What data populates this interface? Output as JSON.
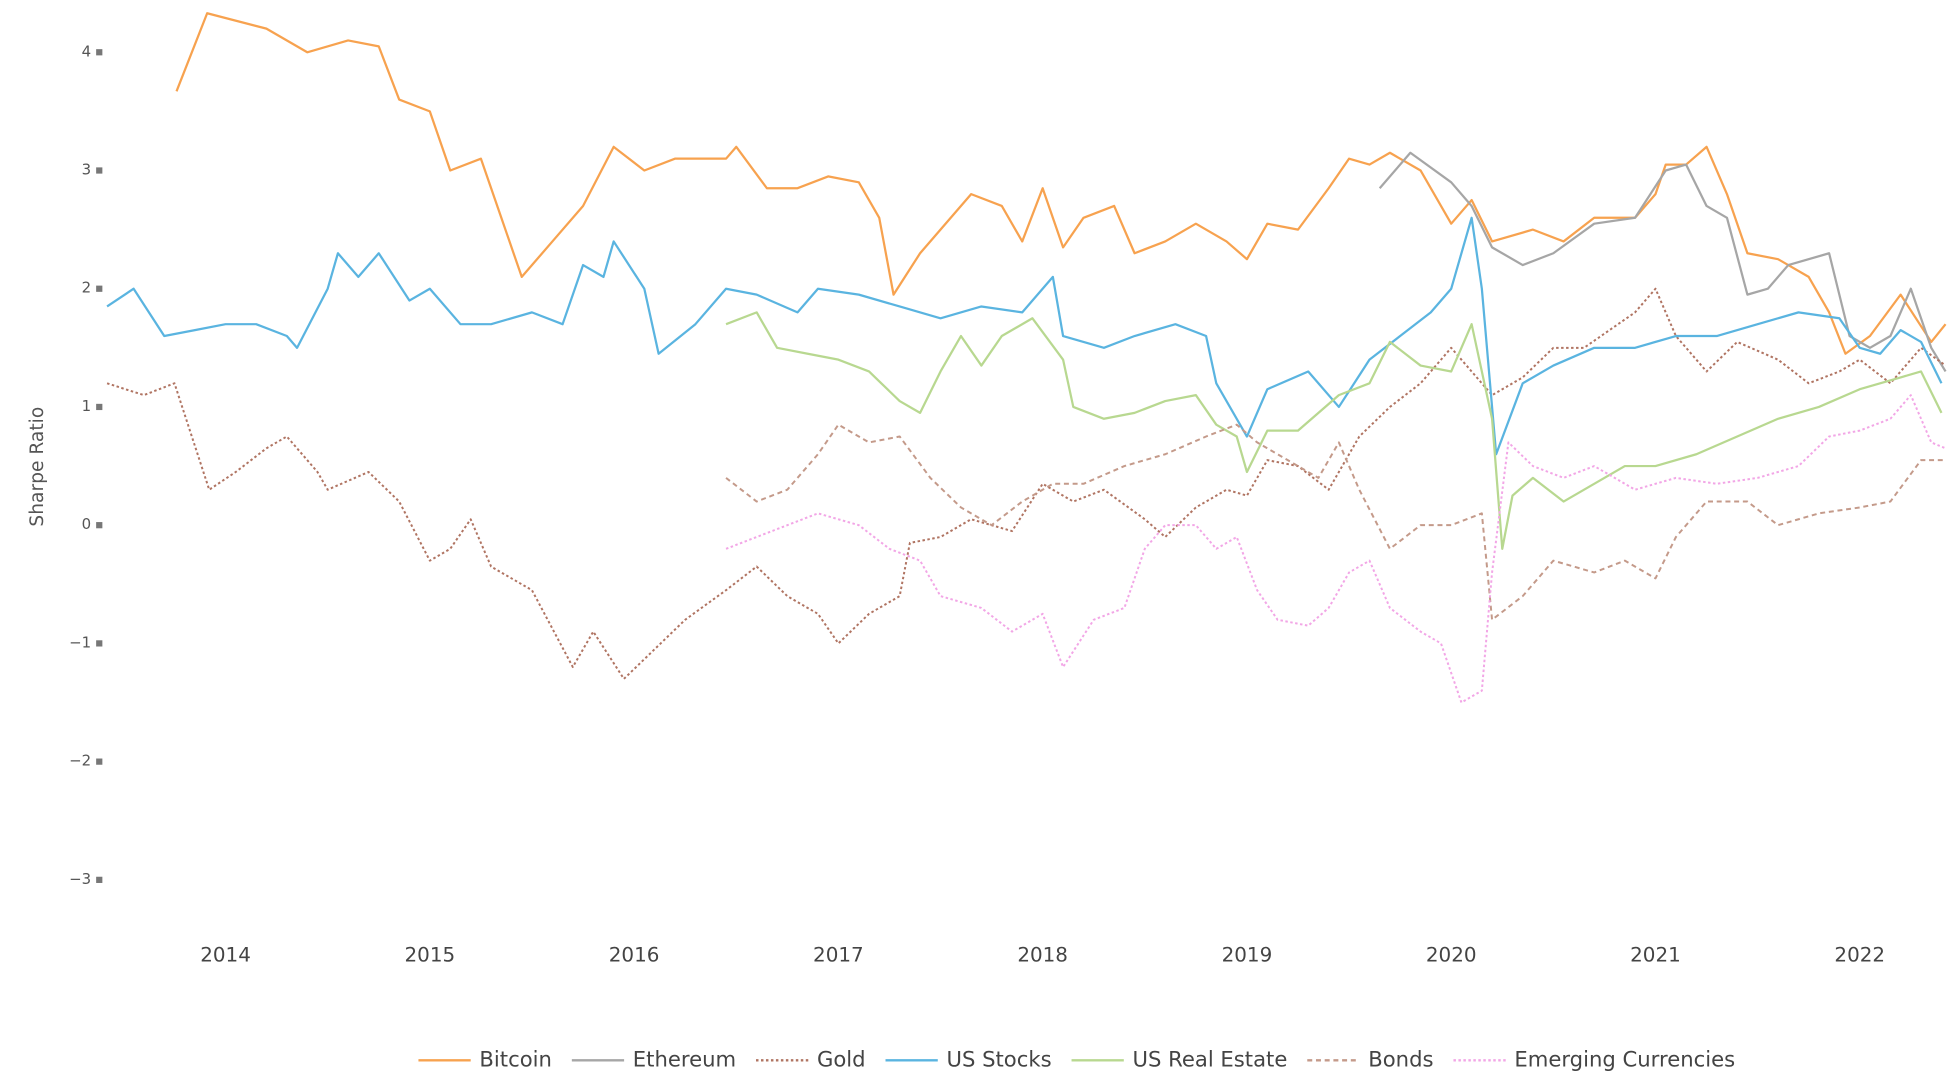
{
  "chart_data": {
    "type": "line",
    "y_label": "Sharpe Ratio",
    "xlim": [
      2013.4,
      2022.45
    ],
    "xticks": [
      2014,
      2015,
      2016,
      2017,
      2018,
      2019,
      2020,
      2021,
      2022
    ],
    "ylim": [
      -3.2,
      4.35
    ],
    "yticks": [
      4,
      3,
      2,
      1,
      0,
      {
        "value": -1,
        "label": "−1"
      },
      {
        "value": -2,
        "label": "−2"
      },
      {
        "value": -3,
        "label": "−3"
      }
    ],
    "grid": false,
    "legend": "bottom",
    "series": [
      {
        "name": "Bitcoin",
        "color": "#f7a24f",
        "dash": "solid",
        "x": [
          2013.76,
          2013.91,
          2014.2,
          2014.4,
          2014.6,
          2014.75,
          2014.85,
          2015.0,
          2015.1,
          2015.25,
          2015.35,
          2015.45,
          2015.6,
          2015.75,
          2015.9,
          2016.05,
          2016.2,
          2016.45,
          2016.5,
          2016.65,
          2016.8,
          2016.95,
          2017.1,
          2017.2,
          2017.27,
          2017.4,
          2017.55,
          2017.65,
          2017.8,
          2017.9,
          2018.0,
          2018.1,
          2018.2,
          2018.35,
          2018.45,
          2018.6,
          2018.75,
          2018.9,
          2019.0,
          2019.1,
          2019.25,
          2019.4,
          2019.5,
          2019.6,
          2019.7,
          2019.85,
          2020.0,
          2020.1,
          2020.2,
          2020.4,
          2020.55,
          2020.7,
          2020.9,
          2021.0,
          2021.05,
          2021.15,
          2021.25,
          2021.35,
          2021.45,
          2021.6,
          2021.75,
          2021.85,
          2021.93,
          2022.05,
          2022.2,
          2022.35,
          2022.42
        ],
        "values": [
          3.67,
          4.33,
          4.2,
          4.0,
          4.1,
          4.05,
          3.6,
          3.5,
          3.0,
          3.1,
          2.6,
          2.1,
          2.4,
          2.7,
          3.2,
          3.0,
          3.1,
          3.1,
          3.2,
          2.85,
          2.85,
          2.95,
          2.9,
          2.6,
          1.95,
          2.3,
          2.6,
          2.8,
          2.7,
          2.4,
          2.85,
          2.35,
          2.6,
          2.7,
          2.3,
          2.4,
          2.55,
          2.4,
          2.25,
          2.55,
          2.5,
          2.85,
          3.1,
          3.05,
          3.15,
          3.0,
          2.55,
          2.75,
          2.4,
          2.5,
          2.4,
          2.6,
          2.6,
          2.8,
          3.05,
          3.05,
          3.2,
          2.8,
          2.3,
          2.25,
          2.1,
          1.8,
          1.45,
          1.6,
          1.95,
          1.55,
          1.7
        ]
      },
      {
        "name": "Ethereum",
        "color": "#a6a6a6",
        "dash": "solid",
        "x": [
          2019.65,
          2019.8,
          2020.0,
          2020.1,
          2020.2,
          2020.35,
          2020.5,
          2020.7,
          2020.9,
          2021.05,
          2021.15,
          2021.25,
          2021.35,
          2021.45,
          2021.55,
          2021.65,
          2021.85,
          2021.95,
          2022.05,
          2022.15,
          2022.25,
          2022.35,
          2022.42
        ],
        "values": [
          2.85,
          3.15,
          2.9,
          2.7,
          2.35,
          2.2,
          2.3,
          2.55,
          2.6,
          3.0,
          3.05,
          2.7,
          2.6,
          1.95,
          2.0,
          2.2,
          2.3,
          1.6,
          1.5,
          1.6,
          2.0,
          1.5,
          1.3
        ]
      },
      {
        "name": "Gold",
        "color": "#b07462",
        "dash": "dot",
        "x": [
          2013.42,
          2013.6,
          2013.75,
          2013.92,
          2014.05,
          2014.2,
          2014.3,
          2014.45,
          2014.5,
          2014.7,
          2014.85,
          2015.0,
          2015.1,
          2015.2,
          2015.3,
          2015.5,
          2015.7,
          2015.8,
          2015.95,
          2016.1,
          2016.25,
          2016.45,
          2016.6,
          2016.75,
          2016.9,
          2017.0,
          2017.15,
          2017.3,
          2017.35,
          2017.5,
          2017.65,
          2017.85,
          2018.0,
          2018.15,
          2018.3,
          2018.5,
          2018.6,
          2018.75,
          2018.9,
          2019.0,
          2019.1,
          2019.25,
          2019.4,
          2019.55,
          2019.7,
          2019.85,
          2020.0,
          2020.15,
          2020.2,
          2020.35,
          2020.5,
          2020.65,
          2020.9,
          2021.0,
          2021.1,
          2021.25,
          2021.4,
          2021.6,
          2021.75,
          2021.9,
          2022.0,
          2022.15,
          2022.3,
          2022.42
        ],
        "values": [
          1.2,
          1.1,
          1.2,
          0.3,
          0.45,
          0.65,
          0.75,
          0.45,
          0.3,
          0.45,
          0.2,
          -0.3,
          -0.2,
          0.05,
          -0.35,
          -0.55,
          -1.2,
          -0.9,
          -1.3,
          -1.05,
          -0.8,
          -0.55,
          -0.35,
          -0.6,
          -0.75,
          -1.0,
          -0.75,
          -0.6,
          -0.15,
          -0.1,
          0.05,
          -0.05,
          0.35,
          0.2,
          0.3,
          0.05,
          -0.1,
          0.15,
          0.3,
          0.25,
          0.55,
          0.5,
          0.3,
          0.75,
          1.0,
          1.2,
          1.5,
          1.2,
          1.1,
          1.25,
          1.5,
          1.5,
          1.8,
          2.0,
          1.6,
          1.3,
          1.55,
          1.4,
          1.2,
          1.3,
          1.4,
          1.2,
          1.5,
          1.35
        ]
      },
      {
        "name": "US Stocks",
        "color": "#5ab4e0",
        "dash": "solid",
        "x": [
          2013.42,
          2013.55,
          2013.7,
          2013.85,
          2014.0,
          2014.15,
          2014.3,
          2014.35,
          2014.5,
          2014.55,
          2014.65,
          2014.75,
          2014.9,
          2015.0,
          2015.15,
          2015.3,
          2015.5,
          2015.65,
          2015.75,
          2015.85,
          2015.9,
          2016.05,
          2016.12,
          2016.3,
          2016.45,
          2016.6,
          2016.8,
          2016.9,
          2017.1,
          2017.3,
          2017.5,
          2017.7,
          2017.9,
          2018.05,
          2018.1,
          2018.3,
          2018.45,
          2018.65,
          2018.8,
          2018.85,
          2019.0,
          2019.1,
          2019.3,
          2019.45,
          2019.6,
          2019.75,
          2019.9,
          2020.0,
          2020.1,
          2020.15,
          2020.22,
          2020.35,
          2020.5,
          2020.7,
          2020.9,
          2021.1,
          2021.3,
          2021.5,
          2021.7,
          2021.9,
          2022.0,
          2022.1,
          2022.2,
          2022.3,
          2022.4
        ],
        "values": [
          1.85,
          2.0,
          1.6,
          1.65,
          1.7,
          1.7,
          1.6,
          1.5,
          2.0,
          2.3,
          2.1,
          2.3,
          1.9,
          2.0,
          1.7,
          1.7,
          1.8,
          1.7,
          2.2,
          2.1,
          2.4,
          2.0,
          1.45,
          1.7,
          2.0,
          1.95,
          1.8,
          2.0,
          1.95,
          1.85,
          1.75,
          1.85,
          1.8,
          2.1,
          1.6,
          1.5,
          1.6,
          1.7,
          1.6,
          1.2,
          0.75,
          1.15,
          1.3,
          1.0,
          1.4,
          1.6,
          1.8,
          2.0,
          2.6,
          2.0,
          0.6,
          1.2,
          1.35,
          1.5,
          1.5,
          1.6,
          1.6,
          1.7,
          1.8,
          1.75,
          1.5,
          1.45,
          1.65,
          1.55,
          1.2
        ]
      },
      {
        "name": "US Real Estate",
        "color": "#b8d890",
        "dash": "solid",
        "x": [
          2016.45,
          2016.6,
          2016.7,
          2016.85,
          2017.0,
          2017.15,
          2017.3,
          2017.4,
          2017.5,
          2017.6,
          2017.7,
          2017.8,
          2017.95,
          2018.1,
          2018.15,
          2018.3,
          2018.45,
          2018.6,
          2018.75,
          2018.85,
          2018.95,
          2019.0,
          2019.1,
          2019.25,
          2019.45,
          2019.6,
          2019.7,
          2019.85,
          2020.0,
          2020.1,
          2020.2,
          2020.25,
          2020.3,
          2020.4,
          2020.55,
          2020.7,
          2020.85,
          2021.0,
          2021.2,
          2021.4,
          2021.6,
          2021.8,
          2022.0,
          2022.2,
          2022.3,
          2022.4
        ],
        "values": [
          1.7,
          1.8,
          1.5,
          1.45,
          1.4,
          1.3,
          1.05,
          0.95,
          1.3,
          1.6,
          1.35,
          1.6,
          1.75,
          1.4,
          1.0,
          0.9,
          0.95,
          1.05,
          1.1,
          0.85,
          0.75,
          0.45,
          0.8,
          0.8,
          1.1,
          1.2,
          1.55,
          1.35,
          1.3,
          1.7,
          0.9,
          -0.2,
          0.25,
          0.4,
          0.2,
          0.35,
          0.5,
          0.5,
          0.6,
          0.75,
          0.9,
          1.0,
          1.15,
          1.25,
          1.3,
          0.95
        ]
      },
      {
        "name": "Bonds",
        "color": "#c49a8a",
        "dash": "dash",
        "x": [
          2016.45,
          2016.6,
          2016.75,
          2016.9,
          2017.0,
          2017.15,
          2017.3,
          2017.45,
          2017.6,
          2017.75,
          2017.9,
          2018.05,
          2018.2,
          2018.4,
          2018.6,
          2018.8,
          2018.95,
          2019.05,
          2019.2,
          2019.35,
          2019.45,
          2019.55,
          2019.7,
          2019.85,
          2020.0,
          2020.15,
          2020.2,
          2020.35,
          2020.5,
          2020.7,
          2020.85,
          2021.0,
          2021.1,
          2021.25,
          2021.45,
          2021.6,
          2021.8,
          2022.0,
          2022.15,
          2022.3,
          2022.42
        ],
        "values": [
          0.4,
          0.2,
          0.3,
          0.6,
          0.85,
          0.7,
          0.75,
          0.4,
          0.15,
          0.0,
          0.2,
          0.35,
          0.35,
          0.5,
          0.6,
          0.75,
          0.85,
          0.7,
          0.55,
          0.4,
          0.7,
          0.3,
          -0.2,
          0.0,
          0.0,
          0.1,
          -0.8,
          -0.6,
          -0.3,
          -0.4,
          -0.3,
          -0.45,
          -0.1,
          0.2,
          0.2,
          0.0,
          0.1,
          0.15,
          0.2,
          0.55,
          0.55
        ]
      },
      {
        "name": "Emerging Currencies",
        "color": "#f2a6e6",
        "dash": "dot",
        "x": [
          2016.45,
          2016.6,
          2016.75,
          2016.9,
          2017.1,
          2017.25,
          2017.4,
          2017.5,
          2017.7,
          2017.85,
          2018.0,
          2018.1,
          2018.25,
          2018.4,
          2018.5,
          2018.6,
          2018.75,
          2018.85,
          2018.95,
          2019.05,
          2019.15,
          2019.3,
          2019.4,
          2019.5,
          2019.6,
          2019.7,
          2019.85,
          2019.95,
          2020.05,
          2020.15,
          2020.2,
          2020.28,
          2020.4,
          2020.55,
          2020.7,
          2020.9,
          2021.1,
          2021.3,
          2021.5,
          2021.7,
          2021.85,
          2022.0,
          2022.15,
          2022.25,
          2022.35,
          2022.42
        ],
        "values": [
          -0.2,
          -0.1,
          0.0,
          0.1,
          0.0,
          -0.2,
          -0.3,
          -0.6,
          -0.7,
          -0.9,
          -0.75,
          -1.2,
          -0.8,
          -0.7,
          -0.2,
          0.0,
          0.0,
          -0.2,
          -0.1,
          -0.55,
          -0.8,
          -0.85,
          -0.7,
          -0.4,
          -0.3,
          -0.7,
          -0.9,
          -1.0,
          -1.5,
          -1.4,
          -0.4,
          0.7,
          0.5,
          0.4,
          0.5,
          0.3,
          0.4,
          0.35,
          0.4,
          0.5,
          0.75,
          0.8,
          0.9,
          1.1,
          0.7,
          0.65
        ]
      }
    ]
  }
}
